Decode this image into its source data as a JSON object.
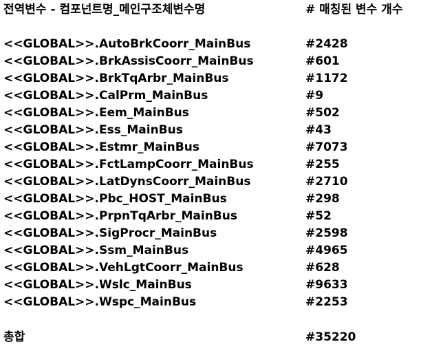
{
  "header": {
    "name_label": "전역변수 - 컴포넌트명_메인구조체변수명",
    "count_label": "# 매칭된 변수 개수"
  },
  "rows": [
    {
      "name": "<<GLOBAL>>.AutoBrkCoorr_MainBus",
      "count": "#2428"
    },
    {
      "name": "<<GLOBAL>>.BrkAssisCoorr_MainBus",
      "count": "#601"
    },
    {
      "name": "<<GLOBAL>>.BrkTqArbr_MainBus",
      "count": "#1172"
    },
    {
      "name": "<<GLOBAL>>.CalPrm_MainBus",
      "count": "#9"
    },
    {
      "name": "<<GLOBAL>>.Eem_MainBus",
      "count": "#502"
    },
    {
      "name": "<<GLOBAL>>.Ess_MainBus",
      "count": "#43"
    },
    {
      "name": "<<GLOBAL>>.Estmr_MainBus",
      "count": "#7073"
    },
    {
      "name": "<<GLOBAL>>.FctLampCoorr_MainBus",
      "count": "#255"
    },
    {
      "name": "<<GLOBAL>>.LatDynsCoorr_MainBus",
      "count": "#2710"
    },
    {
      "name": "<<GLOBAL>>.Pbc_HOST_MainBus",
      "count": "#298"
    },
    {
      "name": "<<GLOBAL>>.PrpnTqArbr_MainBus",
      "count": "#52"
    },
    {
      "name": "<<GLOBAL>>.SigProcr_MainBus",
      "count": "#2598"
    },
    {
      "name": "<<GLOBAL>>.Ssm_MainBus",
      "count": "#4965"
    },
    {
      "name": "<<GLOBAL>>.VehLgtCoorr_MainBus",
      "count": "#628"
    },
    {
      "name": "<<GLOBAL>>.Wslc_MainBus",
      "count": "#9633"
    },
    {
      "name": "<<GLOBAL>>.Wspc_MainBus",
      "count": "#2253"
    }
  ],
  "total": {
    "label": "총합",
    "count": "#35220"
  }
}
